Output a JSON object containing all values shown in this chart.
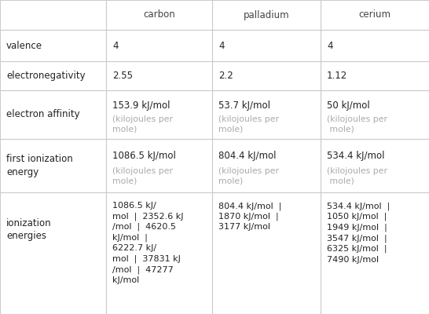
{
  "headers": [
    "",
    "carbon",
    "palladium",
    "cerium"
  ],
  "rows": [
    {
      "label": "valence",
      "carbon": "4",
      "palladium": "4",
      "cerium": "4"
    },
    {
      "label": "electronegativity",
      "carbon": "2.55",
      "palladium": "2.2",
      "cerium": "1.12"
    },
    {
      "label": "electron affinity",
      "carbon_main": "153.9 kJ/mol",
      "carbon_sub": "(kilojoules per\nmole)",
      "palladium_main": "53.7 kJ/mol",
      "palladium_sub": "(kilojoules per\nmole)",
      "cerium_main": "50 kJ/mol",
      "cerium_sub": "(kilojoules per\n mole)"
    },
    {
      "label": "first ionization\nenergy",
      "carbon_main": "1086.5 kJ/mol",
      "carbon_sub": "(kilojoules per\nmole)",
      "palladium_main": "804.4 kJ/mol",
      "palladium_sub": "(kilojoules per\nmole)",
      "cerium_main": "534.4 kJ/mol",
      "cerium_sub": "(kilojoules per\n mole)"
    },
    {
      "label": "ionization\nenergies",
      "carbon": "1086.5 kJ/\nmol  |  2352.6 kJ\n/mol  |  4620.5\nkJ/mol  |\n6222.7 kJ/\nmol  |  37831 kJ\n/mol  |  47277\nkJ/mol",
      "palladium": "804.4 kJ/mol  |\n1870 kJ/mol  |\n3177 kJ/mol",
      "cerium": "534.4 kJ/mol  |\n1050 kJ/mol  |\n1949 kJ/mol  |\n3547 kJ/mol  |\n6325 kJ/mol  |\n7490 kJ/mol"
    }
  ],
  "background_color": "#ffffff",
  "header_text_color": "#444444",
  "cell_text_color": "#222222",
  "sub_text_color": "#aaaaaa",
  "border_color": "#cccccc",
  "font_size": 8.5,
  "sub_font_size": 7.8,
  "header_font_size": 8.5
}
